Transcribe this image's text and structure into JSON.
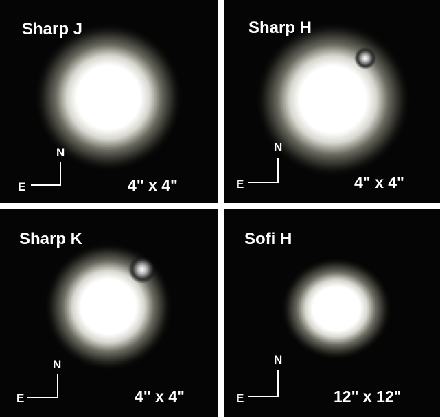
{
  "panels": [
    {
      "title": "Sharp J",
      "north": "N",
      "east": "E",
      "scale": "4\" x 4\""
    },
    {
      "title": "Sharp H",
      "north": "N",
      "east": "E",
      "scale": "4\" x 4\""
    },
    {
      "title": "Sharp K",
      "north": "N",
      "east": "E",
      "scale": "4\" x 4\""
    },
    {
      "title": "Sofi H",
      "north": "N",
      "east": "E",
      "scale": "12\" x 12\""
    }
  ]
}
